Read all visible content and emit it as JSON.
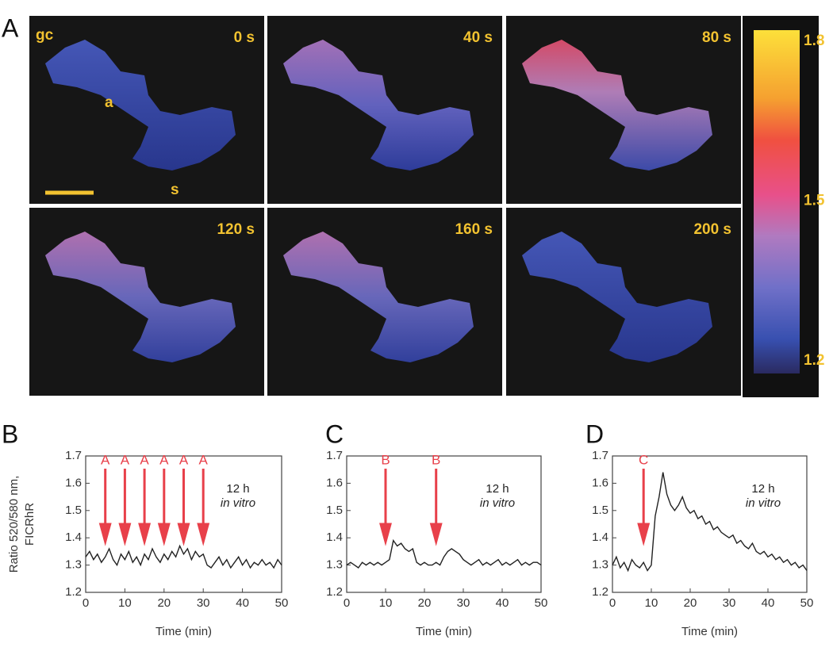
{
  "panel_a": {
    "label": "A",
    "frames": [
      {
        "time": "0 s"
      },
      {
        "time": "40 s"
      },
      {
        "time": "80 s"
      },
      {
        "time": "120 s"
      },
      {
        "time": "160 s"
      },
      {
        "time": "200 s"
      }
    ],
    "annotations": {
      "gc": "gc",
      "a": "a",
      "s": "s"
    },
    "colorbar": {
      "lim": [
        1.2,
        1.8
      ],
      "ticks": [
        1.2,
        1.5,
        1.8
      ]
    }
  },
  "chart_data": [
    {
      "type": "line",
      "label": "B",
      "ylabel": [
        "Ratio 520/580 nm,",
        "FICRhR"
      ],
      "xlabel": "Time (min)",
      "note": [
        "12 h",
        "in vitro"
      ],
      "xlim": [
        0,
        50
      ],
      "xticks": [
        0,
        10,
        20,
        30,
        40,
        50
      ],
      "ylim": [
        1.2,
        1.7
      ],
      "yticks": [
        1.2,
        1.3,
        1.4,
        1.5,
        1.6,
        1.7
      ],
      "markers": [
        {
          "label": "A",
          "x": 5
        },
        {
          "label": "A",
          "x": 10
        },
        {
          "label": "A",
          "x": 15
        },
        {
          "label": "A",
          "x": 20
        },
        {
          "label": "A",
          "x": 25
        },
        {
          "label": "A",
          "x": 30
        }
      ],
      "x": [
        0,
        1,
        2,
        3,
        4,
        5,
        6,
        7,
        8,
        9,
        10,
        11,
        12,
        13,
        14,
        15,
        16,
        17,
        18,
        19,
        20,
        21,
        22,
        23,
        24,
        25,
        26,
        27,
        28,
        29,
        30,
        31,
        32,
        33,
        34,
        35,
        36,
        37,
        38,
        39,
        40,
        41,
        42,
        43,
        44,
        45,
        46,
        47,
        48,
        49,
        50
      ],
      "series": [
        {
          "color": "#222222",
          "values": [
            1.33,
            1.35,
            1.32,
            1.34,
            1.31,
            1.33,
            1.36,
            1.32,
            1.3,
            1.34,
            1.32,
            1.35,
            1.31,
            1.33,
            1.3,
            1.34,
            1.32,
            1.36,
            1.33,
            1.31,
            1.34,
            1.32,
            1.35,
            1.33,
            1.37,
            1.34,
            1.36,
            1.32,
            1.35,
            1.33,
            1.34,
            1.3,
            1.29,
            1.31,
            1.33,
            1.3,
            1.32,
            1.29,
            1.31,
            1.33,
            1.3,
            1.32,
            1.29,
            1.31,
            1.3,
            1.32,
            1.3,
            1.31,
            1.29,
            1.32,
            1.3
          ]
        }
      ]
    },
    {
      "type": "line",
      "label": "C",
      "xlabel": "Time (min)",
      "note": [
        "12 h",
        "in vitro"
      ],
      "xlim": [
        0,
        50
      ],
      "xticks": [
        0,
        10,
        20,
        30,
        40,
        50
      ],
      "ylim": [
        1.2,
        1.7
      ],
      "yticks": [
        1.2,
        1.3,
        1.4,
        1.5,
        1.6,
        1.7
      ],
      "markers": [
        {
          "label": "B",
          "x": 10
        },
        {
          "label": "B",
          "x": 23
        }
      ],
      "x": [
        0,
        1,
        2,
        3,
        4,
        5,
        6,
        7,
        8,
        9,
        10,
        11,
        12,
        13,
        14,
        15,
        16,
        17,
        18,
        19,
        20,
        21,
        22,
        23,
        24,
        25,
        26,
        27,
        28,
        29,
        30,
        31,
        32,
        33,
        34,
        35,
        36,
        37,
        38,
        39,
        40,
        41,
        42,
        43,
        44,
        45,
        46,
        47,
        48,
        49,
        50
      ],
      "series": [
        {
          "color": "#222222",
          "values": [
            1.3,
            1.31,
            1.3,
            1.29,
            1.31,
            1.3,
            1.31,
            1.3,
            1.31,
            1.3,
            1.31,
            1.32,
            1.39,
            1.37,
            1.38,
            1.36,
            1.35,
            1.36,
            1.31,
            1.3,
            1.31,
            1.3,
            1.3,
            1.31,
            1.3,
            1.33,
            1.35,
            1.36,
            1.35,
            1.34,
            1.32,
            1.31,
            1.3,
            1.31,
            1.32,
            1.3,
            1.31,
            1.3,
            1.31,
            1.32,
            1.3,
            1.31,
            1.3,
            1.31,
            1.32,
            1.3,
            1.31,
            1.3,
            1.31,
            1.31,
            1.3
          ]
        }
      ]
    },
    {
      "type": "line",
      "label": "D",
      "xlabel": "Time (min)",
      "note": [
        "12 h",
        "in vitro"
      ],
      "xlim": [
        0,
        50
      ],
      "xticks": [
        0,
        10,
        20,
        30,
        40,
        50
      ],
      "ylim": [
        1.2,
        1.7
      ],
      "yticks": [
        1.2,
        1.3,
        1.4,
        1.5,
        1.6,
        1.7
      ],
      "markers": [
        {
          "label": "C",
          "x": 8
        }
      ],
      "x": [
        0,
        1,
        2,
        3,
        4,
        5,
        6,
        7,
        8,
        9,
        10,
        11,
        12,
        13,
        14,
        15,
        16,
        17,
        18,
        19,
        20,
        21,
        22,
        23,
        24,
        25,
        26,
        27,
        28,
        29,
        30,
        31,
        32,
        33,
        34,
        35,
        36,
        37,
        38,
        39,
        40,
        41,
        42,
        43,
        44,
        45,
        46,
        47,
        48,
        49,
        50
      ],
      "series": [
        {
          "color": "#222222",
          "values": [
            1.3,
            1.33,
            1.29,
            1.31,
            1.28,
            1.32,
            1.3,
            1.29,
            1.31,
            1.28,
            1.3,
            1.48,
            1.55,
            1.64,
            1.56,
            1.52,
            1.5,
            1.52,
            1.55,
            1.51,
            1.49,
            1.5,
            1.47,
            1.48,
            1.45,
            1.46,
            1.43,
            1.44,
            1.42,
            1.41,
            1.4,
            1.41,
            1.38,
            1.39,
            1.37,
            1.36,
            1.38,
            1.35,
            1.34,
            1.35,
            1.33,
            1.34,
            1.32,
            1.33,
            1.31,
            1.32,
            1.3,
            1.31,
            1.29,
            1.3,
            1.28
          ]
        }
      ]
    }
  ]
}
